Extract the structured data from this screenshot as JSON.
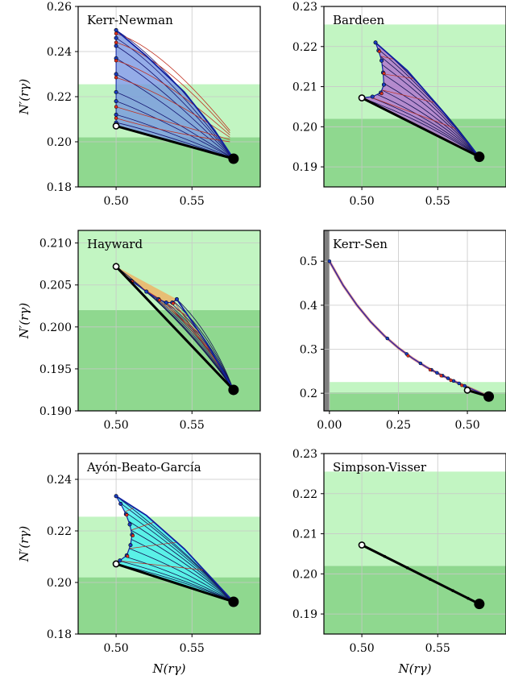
{
  "chart_data": [
    {
      "type": "line",
      "title": "Kerr-Newman",
      "xlabel": "",
      "ylabel": "N′(rγ)",
      "xlim": [
        0.475,
        0.595
      ],
      "ylim": [
        0.18,
        0.26
      ],
      "xticks": [
        0.5,
        0.55
      ],
      "xtick_labels": [
        "0.50",
        "0.55"
      ],
      "yticks": [
        0.18,
        0.2,
        0.22,
        0.24,
        0.26
      ],
      "ytick_labels": [
        "0.18",
        "0.20",
        "0.22",
        "0.24",
        "0.26"
      ],
      "grid": true,
      "bands": [
        {
          "y0": 0.18,
          "y1": 0.202,
          "color": "#8fd88f"
        },
        {
          "y0": 0.202,
          "y1": 0.2255,
          "color": "#c2f5c2"
        }
      ],
      "fill_color": "#7090e0",
      "mesh_style": "kn",
      "outer_curve": {
        "x": [
          0.5,
          0.52,
          0.545,
          0.565,
          0.5774
        ],
        "y": [
          0.2495,
          0.238,
          0.222,
          0.205,
          0.1925
        ]
      },
      "start_point": [
        0.5,
        0.207
      ],
      "end_point": [
        0.5774,
        0.1925
      ],
      "markers": {
        "blue_y": [
          0.2495,
          0.246,
          0.2425,
          0.237,
          0.23,
          0.222,
          0.218,
          0.212,
          0.2085
        ],
        "red_y": [
          0.248,
          0.244,
          0.236,
          0.2285,
          0.2155,
          0.2105
        ]
      }
    },
    {
      "type": "line",
      "title": "Bardeen",
      "xlabel": "",
      "ylabel": "",
      "xlim": [
        0.475,
        0.595
      ],
      "ylim": [
        0.185,
        0.23
      ],
      "xticks": [
        0.5,
        0.55
      ],
      "xtick_labels": [
        "0.50",
        "0.55"
      ],
      "yticks": [
        0.19,
        0.2,
        0.21,
        0.22,
        0.23
      ],
      "ytick_labels": [
        "0.19",
        "0.20",
        "0.21",
        "0.22",
        "0.23"
      ],
      "grid": true,
      "bands": [
        {
          "y0": 0.185,
          "y1": 0.202,
          "color": "#8fd88f"
        },
        {
          "y0": 0.202,
          "y1": 0.2255,
          "color": "#c2f5c2"
        }
      ],
      "fill_color": "#b070d0",
      "mesh_style": "fan",
      "inner_curve": {
        "x": [
          0.509,
          0.511,
          0.513,
          0.514,
          0.5145,
          0.5125,
          0.507,
          0.5
        ],
        "y": [
          0.221,
          0.219,
          0.2165,
          0.2135,
          0.2105,
          0.2085,
          0.2075,
          0.2072
        ]
      },
      "outer_curve": {
        "x": [
          0.509,
          0.53,
          0.553,
          0.5774
        ],
        "y": [
          0.221,
          0.214,
          0.204,
          0.1925
        ]
      },
      "start_point": [
        0.5,
        0.2072
      ],
      "end_point": [
        0.5774,
        0.1925
      ],
      "markers": {
        "blue_idx": [
          0,
          1,
          2,
          3,
          4,
          5,
          6
        ],
        "red_idx": [
          1,
          3,
          5
        ]
      }
    },
    {
      "type": "line",
      "title": "Hayward",
      "xlabel": "",
      "ylabel": "N′(rγ)",
      "xlim": [
        0.475,
        0.595
      ],
      "ylim": [
        0.19,
        0.2115
      ],
      "xticks": [
        0.5,
        0.55
      ],
      "xtick_labels": [
        "0.50",
        "0.55"
      ],
      "yticks": [
        0.19,
        0.195,
        0.2,
        0.205,
        0.21
      ],
      "ytick_labels": [
        "0.190",
        "0.195",
        "0.200",
        "0.205",
        "0.210"
      ],
      "grid": true,
      "bands": [
        {
          "y0": 0.19,
          "y1": 0.202,
          "color": "#8fd88f"
        },
        {
          "y0": 0.202,
          "y1": 0.2115,
          "color": "#c2f5c2"
        }
      ],
      "fill_color": "#f0b060",
      "mesh_style": "fan",
      "inner_curve": {
        "x": [
          0.5,
          0.51,
          0.52,
          0.528,
          0.533,
          0.537,
          0.54
        ],
        "y": [
          0.2072,
          0.2055,
          0.2042,
          0.2033,
          0.2029,
          0.2029,
          0.2033
        ]
      },
      "outer_curve": {
        "x": [
          0.54,
          0.56,
          0.5774
        ],
        "y": [
          0.2033,
          0.198,
          0.1925
        ]
      },
      "start_point": [
        0.5,
        0.2072
      ],
      "end_point": [
        0.5774,
        0.1925
      ],
      "markers": {
        "blue_idx": [
          1,
          2,
          3,
          4,
          5,
          6
        ],
        "red_idx": [
          1,
          3,
          5
        ]
      }
    },
    {
      "type": "line",
      "title": "Kerr-Sen",
      "xlabel": "",
      "ylabel": "",
      "xlim": [
        -0.02,
        0.64
      ],
      "ylim": [
        0.16,
        0.57
      ],
      "xticks": [
        0,
        0.25,
        0.5
      ],
      "xtick_labels": [
        "0.00",
        "0.25",
        "0.50"
      ],
      "yticks": [
        0.2,
        0.3,
        0.4,
        0.5
      ],
      "ytick_labels": [
        "0.2",
        "0.3",
        "0.4",
        "0.5"
      ],
      "grid": true,
      "bands": [
        {
          "y0": 0.16,
          "y1": 0.202,
          "color": "#8fd88f"
        },
        {
          "y0": 0.202,
          "y1": 0.2255,
          "color": "#c2f5c2"
        }
      ],
      "gray_band": {
        "x0": -0.02,
        "x1": 0,
        "color": "#7f7f7f"
      },
      "fill_color": "#b070d0",
      "mesh_style": "none",
      "curve": {
        "x": [
          0.0,
          0.05,
          0.1,
          0.15,
          0.2,
          0.25,
          0.3,
          0.35,
          0.4,
          0.45,
          0.5,
          0.5774
        ],
        "y": [
          0.5,
          0.445,
          0.4,
          0.362,
          0.33,
          0.303,
          0.28,
          0.26,
          0.243,
          0.228,
          0.214,
          0.1925
        ]
      },
      "start_point": [
        0.5,
        0.207
      ],
      "end_point": [
        0.5774,
        0.1925
      ],
      "markers": {
        "blue_x": [
          0.0,
          0.21,
          0.28,
          0.33,
          0.37,
          0.39,
          0.41,
          0.43,
          0.45,
          0.47,
          0.49
        ],
        "red_x": [
          0.285,
          0.365,
          0.405,
          0.44,
          0.48
        ]
      }
    },
    {
      "type": "line",
      "title": "Ayón-Beato-García",
      "xlabel": "N(rγ)",
      "ylabel": "N′(rγ)",
      "xlim": [
        0.475,
        0.595
      ],
      "ylim": [
        0.18,
        0.25
      ],
      "xticks": [
        0.5,
        0.55
      ],
      "xtick_labels": [
        "0.50",
        "0.55"
      ],
      "yticks": [
        0.18,
        0.2,
        0.22,
        0.24
      ],
      "ytick_labels": [
        "0.18",
        "0.20",
        "0.22",
        "0.24"
      ],
      "grid": true,
      "bands": [
        {
          "y0": 0.18,
          "y1": 0.202,
          "color": "#8fd88f"
        },
        {
          "y0": 0.202,
          "y1": 0.2255,
          "color": "#c2f5c2"
        }
      ],
      "fill_color": "#40f0f0",
      "mesh_style": "fan",
      "inner_curve": {
        "x": [
          0.5,
          0.503,
          0.5065,
          0.509,
          0.5105,
          0.5095,
          0.507,
          0.5025,
          0.5
        ],
        "y": [
          0.2335,
          0.2305,
          0.2265,
          0.2225,
          0.2185,
          0.2145,
          0.2105,
          0.2085,
          0.2072
        ]
      },
      "outer_curve": {
        "x": [
          0.5,
          0.52,
          0.545,
          0.5774
        ],
        "y": [
          0.2335,
          0.226,
          0.213,
          0.1925
        ]
      },
      "start_point": [
        0.5,
        0.2072
      ],
      "end_point": [
        0.5774,
        0.1925
      ],
      "markers": {
        "blue_idx": [
          0,
          1,
          2,
          3,
          4,
          5,
          6,
          7
        ],
        "red_idx": [
          2,
          4,
          6
        ]
      }
    },
    {
      "type": "line",
      "title": "Simpson-Visser",
      "xlabel": "N(rγ)",
      "ylabel": "",
      "xlim": [
        0.475,
        0.595
      ],
      "ylim": [
        0.185,
        0.23
      ],
      "xticks": [
        0.5,
        0.55
      ],
      "xtick_labels": [
        "0.50",
        "0.55"
      ],
      "yticks": [
        0.19,
        0.2,
        0.21,
        0.22,
        0.23
      ],
      "ytick_labels": [
        "0.19",
        "0.20",
        "0.21",
        "0.22",
        "0.23"
      ],
      "grid": true,
      "bands": [
        {
          "y0": 0.185,
          "y1": 0.202,
          "color": "#8fd88f"
        },
        {
          "y0": 0.202,
          "y1": 0.2255,
          "color": "#c2f5c2"
        }
      ],
      "fill_color": "none",
      "mesh_style": "none",
      "curve": {
        "x": [
          0.5,
          0.5774
        ],
        "y": [
          0.2072,
          0.1925
        ]
      },
      "start_point": [
        0.5,
        0.2072
      ],
      "end_point": [
        0.5774,
        0.1925
      ],
      "markers": {
        "dots_x": [
          0.515,
          0.53,
          0.545,
          0.56,
          0.57
        ]
      }
    }
  ]
}
